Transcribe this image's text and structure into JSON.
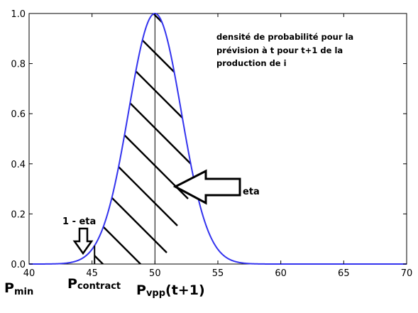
{
  "chart_data": {
    "type": "line",
    "title": "",
    "xlabel": "",
    "ylabel": "",
    "xlim": [
      40,
      70
    ],
    "ylim": [
      0.0,
      1.0
    ],
    "grid": false,
    "x_ticks": [
      "40",
      "45",
      "50",
      "55",
      "60",
      "65",
      "70"
    ],
    "y_ticks": [
      "0.0",
      "0.2",
      "0.4",
      "0.6",
      "0.8",
      "1.0"
    ],
    "series": [
      {
        "color": "#3333ee",
        "style": "gaussian curve",
        "mean": 50,
        "std": 2.1,
        "x": [
          40,
          41,
          42,
          43,
          44,
          45,
          46,
          47,
          48,
          49,
          50,
          51,
          52,
          53,
          54,
          55,
          56,
          57,
          58,
          59,
          60,
          70
        ],
        "y": [
          0.0,
          0.0,
          0.0,
          0.0,
          0.02,
          0.06,
          0.16,
          0.36,
          0.64,
          0.89,
          1.0,
          0.89,
          0.64,
          0.36,
          0.16,
          0.06,
          0.02,
          0.0,
          0.0,
          0.0,
          0.0,
          0.0
        ]
      }
    ],
    "vertical_lines": [
      {
        "x": 45.2,
        "name": "Pcontract"
      },
      {
        "x": 50,
        "name": "Pvpp(t+1)"
      }
    ],
    "hatched_region": {
      "from": 45.2,
      "to": 70,
      "label": "eta"
    },
    "annotations": {
      "description": [
        "densité de probabilité pour la",
        "prévision à t pour t+1 de la",
        "production de i"
      ],
      "eta": "eta",
      "one_minus_eta": "1 - eta",
      "p_min_main": "P",
      "p_min_sub": "min",
      "p_contract_main": "P",
      "p_contract_sub": "contract",
      "p_vpp_main": "P",
      "p_vpp_sub": "vpp",
      "p_vpp_suffix": "(t+1)"
    }
  }
}
